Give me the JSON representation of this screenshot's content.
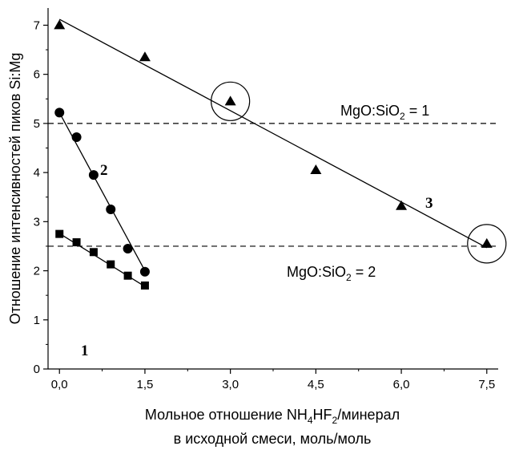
{
  "chart_data": {
    "type": "scatter",
    "title": "",
    "xlabel_parts": [
      "Мольное отношение NH",
      "4",
      "HF",
      "2",
      "/минерал"
    ],
    "xlabel_line2": "в исходной смеси, моль/моль",
    "ylabel": "Отношение интенсивностей пиков Si:Mg",
    "xlim": [
      -0.2,
      7.7
    ],
    "ylim": [
      0,
      7.35
    ],
    "xticks": [
      "0,0",
      "1,5",
      "3,0",
      "4,5",
      "6,0",
      "7,5"
    ],
    "xtick_values": [
      0,
      1.5,
      3.0,
      4.5,
      6.0,
      7.5
    ],
    "yticks": [
      "0",
      "1",
      "2",
      "3",
      "4",
      "5",
      "6",
      "7"
    ],
    "ytick_values": [
      0,
      1,
      2,
      3,
      4,
      5,
      6,
      7
    ],
    "grid": false,
    "series": [
      {
        "name": "1",
        "marker": "square",
        "points": [
          [
            0,
            2.75
          ],
          [
            0.3,
            2.58
          ],
          [
            0.6,
            2.38
          ],
          [
            0.9,
            2.13
          ],
          [
            1.2,
            1.9
          ],
          [
            1.5,
            1.7
          ]
        ],
        "fit": [
          [
            0,
            2.76
          ],
          [
            1.5,
            1.68
          ]
        ]
      },
      {
        "name": "2",
        "marker": "circle",
        "points": [
          [
            0,
            5.22
          ],
          [
            0.3,
            4.72
          ],
          [
            0.6,
            3.95
          ],
          [
            0.9,
            3.25
          ],
          [
            1.2,
            2.45
          ],
          [
            1.5,
            1.98
          ]
        ],
        "fit": [
          [
            0,
            5.22
          ],
          [
            1.5,
            2.0
          ]
        ]
      },
      {
        "name": "3",
        "marker": "triangle",
        "points": [
          [
            0,
            7.0
          ],
          [
            1.5,
            6.35
          ],
          [
            3.0,
            5.45
          ],
          [
            4.5,
            4.05
          ],
          [
            6.0,
            3.32
          ],
          [
            7.5,
            2.55
          ]
        ],
        "fit": [
          [
            0,
            7.12
          ],
          [
            7.5,
            2.47
          ]
        ]
      }
    ],
    "reference_lines": [
      {
        "y": 5.0,
        "label_main": "MgO:SiO",
        "label_sub": "2",
        "label_tail": " = 1"
      },
      {
        "y": 2.5,
        "label_main": "MgO:SiO",
        "label_sub": "2",
        "label_tail": " = 2"
      }
    ],
    "highlighted_points": [
      [
        3.0,
        5.45
      ],
      [
        7.5,
        2.55
      ]
    ],
    "colors": {
      "ink": "#000000",
      "background": "#ffffff"
    }
  }
}
